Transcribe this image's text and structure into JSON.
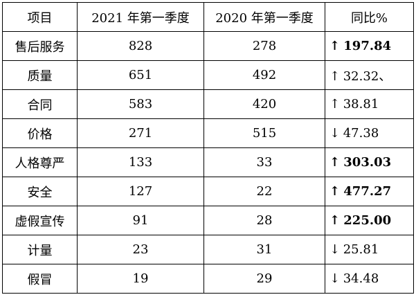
{
  "table": {
    "headers": [
      "项目",
      "2021 年第一季度",
      "2020 年第一季度",
      "同比%"
    ],
    "rows": [
      {
        "item": "售后服务",
        "q2021": "828",
        "q2020": "278",
        "arrow": "↑",
        "yoy": "197.84",
        "bold": true
      },
      {
        "item": "质量",
        "q2021": "651",
        "q2020": "492",
        "arrow": "↑",
        "yoy": "32.32、",
        "bold": false
      },
      {
        "item": "合同",
        "q2021": "583",
        "q2020": "420",
        "arrow": "↑",
        "yoy": "38.81",
        "bold": false
      },
      {
        "item": "价格",
        "q2021": "271",
        "q2020": "515",
        "arrow": "↓",
        "yoy": "47.38",
        "bold": false
      },
      {
        "item": "人格尊严",
        "q2021": "133",
        "q2020": "33",
        "arrow": "↑",
        "yoy": "303.03",
        "bold": true
      },
      {
        "item": "安全",
        "q2021": "127",
        "q2020": "22",
        "arrow": "↑",
        "yoy": "477.27",
        "bold": true
      },
      {
        "item": "虚假宣传",
        "q2021": "91",
        "q2020": "28",
        "arrow": "↑",
        "yoy": "225.00",
        "bold": true
      },
      {
        "item": "计量",
        "q2021": "23",
        "q2020": "31",
        "arrow": "↓",
        "yoy": "25.81",
        "bold": false
      },
      {
        "item": "假冒",
        "q2021": "19",
        "q2020": "29",
        "arrow": "↓",
        "yoy": "34.48",
        "bold": false
      }
    ]
  }
}
